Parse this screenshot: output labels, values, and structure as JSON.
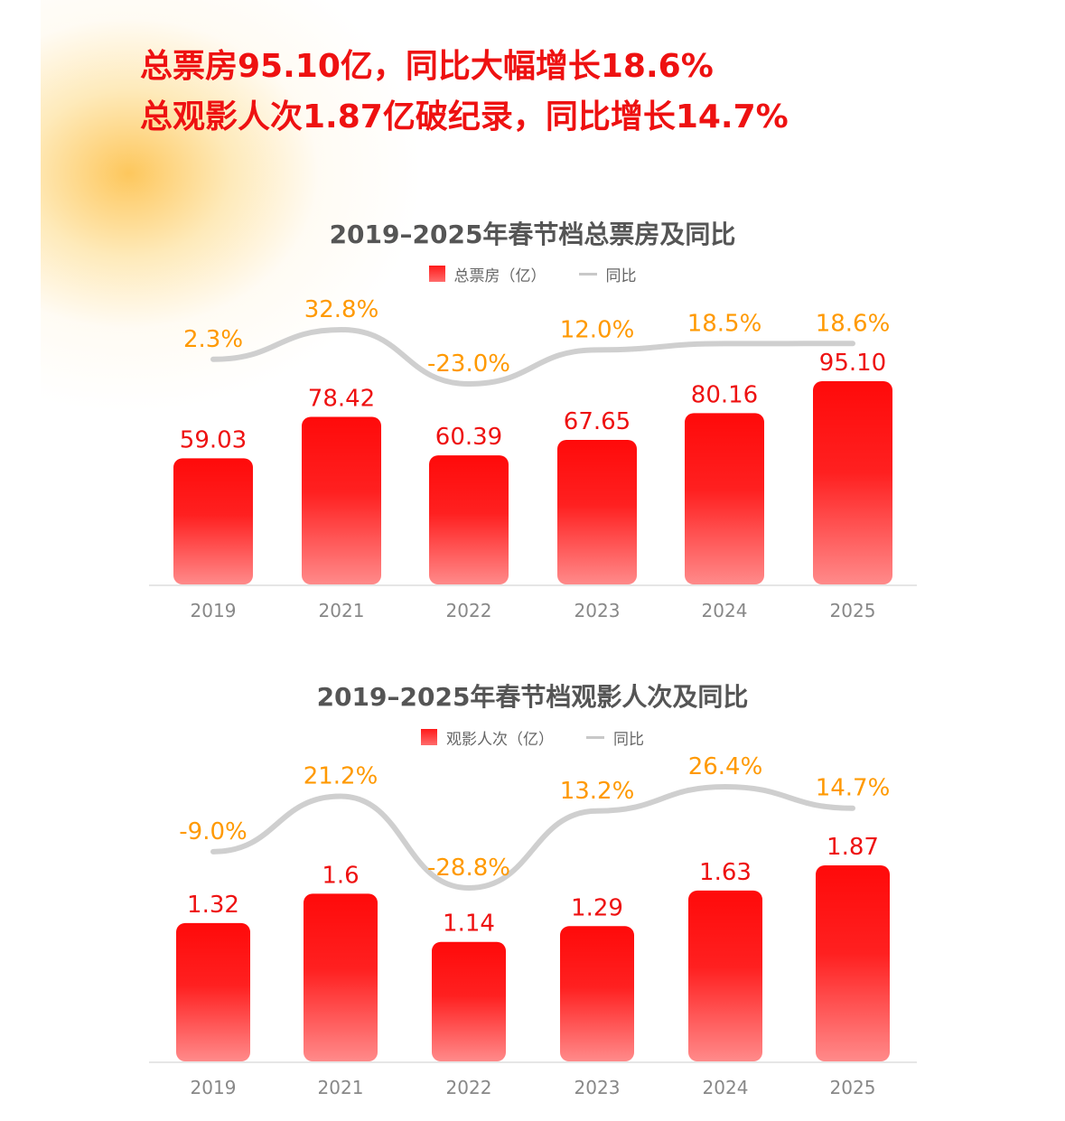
{
  "headlines": [
    "总票房95.10亿，同比大幅增长18.6%",
    "总观影人次1.87亿破纪录，同比增长14.7%"
  ],
  "chart_data": [
    {
      "type": "bar",
      "title": "2019–2025年春节档总票房及同比",
      "legend": [
        "总票房（亿）",
        "同比"
      ],
      "categories": [
        "2019",
        "2021",
        "2022",
        "2023",
        "2024",
        "2025"
      ],
      "series": [
        {
          "name": "总票房（亿）",
          "type": "bar",
          "values": [
            59.03,
            78.42,
            60.39,
            67.65,
            80.16,
            95.1
          ],
          "labels": [
            "59.03",
            "78.42",
            "60.39",
            "67.65",
            "80.16",
            "95.10"
          ]
        },
        {
          "name": "同比",
          "type": "line",
          "values": [
            2.3,
            32.8,
            -23.0,
            12.0,
            18.5,
            18.6
          ],
          "labels": [
            "2.3%",
            "32.8%",
            "-23.0%",
            "12.0%",
            "18.5%",
            "18.6%"
          ]
        }
      ],
      "bar_color": "#ff1a1a",
      "line_color": "#cfcfcf",
      "pct_color": "#ff9900"
    },
    {
      "type": "bar",
      "title": "2019–2025年春节档观影人次及同比",
      "legend": [
        "观影人次（亿）",
        "同比"
      ],
      "categories": [
        "2019",
        "2021",
        "2022",
        "2023",
        "2024",
        "2025"
      ],
      "series": [
        {
          "name": "观影人次（亿）",
          "type": "bar",
          "values": [
            1.32,
            1.6,
            1.14,
            1.29,
            1.63,
            1.87
          ],
          "labels": [
            "1.32",
            "1.6",
            "1.14",
            "1.29",
            "1.63",
            "1.87"
          ]
        },
        {
          "name": "同比",
          "type": "line",
          "values": [
            -9.0,
            21.2,
            -28.8,
            13.2,
            26.4,
            14.7
          ],
          "labels": [
            "-9.0%",
            "21.2%",
            "-28.8%",
            "13.2%",
            "26.4%",
            "14.7%"
          ]
        }
      ],
      "bar_color": "#ff1a1a",
      "line_color": "#cfcfcf",
      "pct_color": "#ff9900"
    }
  ]
}
